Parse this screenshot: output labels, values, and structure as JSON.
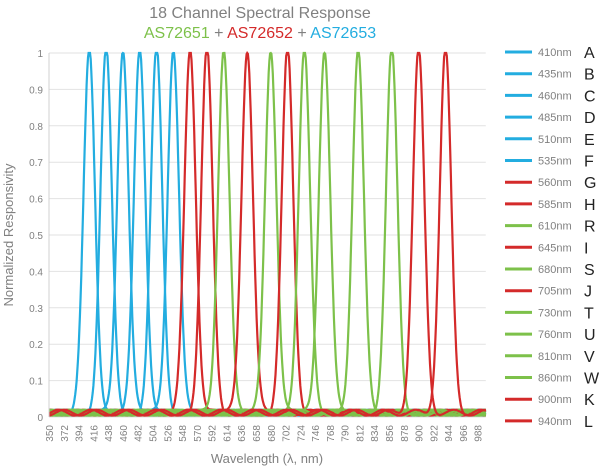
{
  "chart_data": {
    "type": "line",
    "title": "18 Channel Spectral Response",
    "subtitle": [
      {
        "text": "AS72651",
        "color": "#7dc14a"
      },
      {
        "text": " + ",
        "color": "#808080"
      },
      {
        "text": "AS72652",
        "color": "#d42a2a"
      },
      {
        "text": " + ",
        "color": "#808080"
      },
      {
        "text": "AS72653",
        "color": "#23ade0"
      }
    ],
    "xlabel": "Wavelength (λ, nm)",
    "ylabel": "Normalized Responsivity",
    "xlim": [
      350,
      1000
    ],
    "ylim": [
      0,
      1
    ],
    "xticks": [
      350,
      372,
      394,
      416,
      438,
      460,
      482,
      504,
      526,
      548,
      570,
      592,
      614,
      636,
      658,
      680,
      702,
      724,
      746,
      768,
      790,
      812,
      834,
      856,
      878,
      900,
      922,
      944,
      966,
      988
    ],
    "yticks": [
      0,
      0.1,
      0.2,
      0.3,
      0.4,
      0.5,
      0.6,
      0.7,
      0.8,
      0.9,
      1
    ],
    "ytick_labels": [
      "0",
      "0.1",
      "0.2",
      "0.3",
      "0.4",
      "0.5",
      "0.6",
      "0.7",
      "0.8",
      "0.9",
      "1"
    ],
    "grid": true,
    "legend_position": "right",
    "series": [
      {
        "name": "410nm",
        "letter": "A",
        "peak": 410,
        "fwhm": 20,
        "color": "#23ade0"
      },
      {
        "name": "435nm",
        "letter": "B",
        "peak": 435,
        "fwhm": 20,
        "color": "#23ade0"
      },
      {
        "name": "460nm",
        "letter": "C",
        "peak": 460,
        "fwhm": 20,
        "color": "#23ade0"
      },
      {
        "name": "485nm",
        "letter": "D",
        "peak": 485,
        "fwhm": 20,
        "color": "#23ade0"
      },
      {
        "name": "510nm",
        "letter": "E",
        "peak": 510,
        "fwhm": 20,
        "color": "#23ade0"
      },
      {
        "name": "535nm",
        "letter": "F",
        "peak": 535,
        "fwhm": 20,
        "color": "#23ade0"
      },
      {
        "name": "560nm",
        "letter": "G",
        "peak": 560,
        "fwhm": 20,
        "color": "#d42a2a"
      },
      {
        "name": "585nm",
        "letter": "H",
        "peak": 585,
        "fwhm": 20,
        "color": "#d42a2a"
      },
      {
        "name": "610nm",
        "letter": "R",
        "peak": 610,
        "fwhm": 20,
        "color": "#7dc14a"
      },
      {
        "name": "645nm",
        "letter": "I",
        "peak": 645,
        "fwhm": 20,
        "color": "#d42a2a"
      },
      {
        "name": "680nm",
        "letter": "S",
        "peak": 680,
        "fwhm": 20,
        "color": "#7dc14a"
      },
      {
        "name": "705nm",
        "letter": "J",
        "peak": 705,
        "fwhm": 20,
        "color": "#d42a2a"
      },
      {
        "name": "730nm",
        "letter": "T",
        "peak": 730,
        "fwhm": 20,
        "color": "#7dc14a"
      },
      {
        "name": "760nm",
        "letter": "U",
        "peak": 760,
        "fwhm": 20,
        "color": "#7dc14a"
      },
      {
        "name": "810nm",
        "letter": "V",
        "peak": 810,
        "fwhm": 20,
        "color": "#7dc14a"
      },
      {
        "name": "860nm",
        "letter": "W",
        "peak": 860,
        "fwhm": 20,
        "color": "#7dc14a"
      },
      {
        "name": "900nm",
        "letter": "K",
        "peak": 900,
        "fwhm": 20,
        "color": "#d42a2a"
      },
      {
        "name": "940nm",
        "letter": "L",
        "peak": 940,
        "fwhm": 20,
        "color": "#d42a2a"
      }
    ]
  }
}
